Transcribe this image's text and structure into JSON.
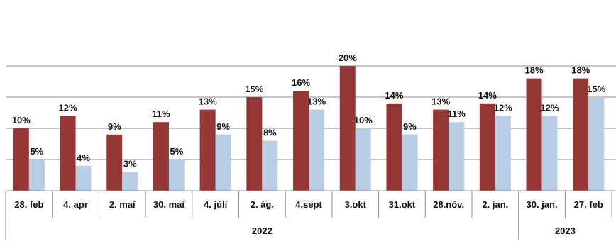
{
  "chart_data": {
    "type": "bar",
    "categories": [
      "28. feb",
      "4. apr",
      "2. maí",
      "30. maí",
      "4. júlí",
      "2. ág.",
      "4.sept",
      "3.okt",
      "31.okt",
      "28.nóv.",
      "2. jan.",
      "30. jan.",
      "27. feb"
    ],
    "groups": [
      {
        "label": "2022",
        "start": 0,
        "end": 10
      },
      {
        "label": "2023",
        "start": 11,
        "end": 12
      }
    ],
    "series": [
      {
        "values": [
          10,
          12,
          9,
          11,
          13,
          15,
          16,
          20,
          14,
          13,
          14,
          18,
          18
        ],
        "color": "#953735"
      },
      {
        "values": [
          5,
          4,
          3,
          5,
          9,
          8,
          13,
          10,
          9,
          11,
          12,
          12,
          15
        ],
        "color": "#B9CDE5"
      }
    ],
    "value_suffix": "%",
    "ylim": [
      0,
      20
    ],
    "grid": true,
    "legend": "none",
    "title": "",
    "xlabel": "",
    "ylabel": ""
  }
}
